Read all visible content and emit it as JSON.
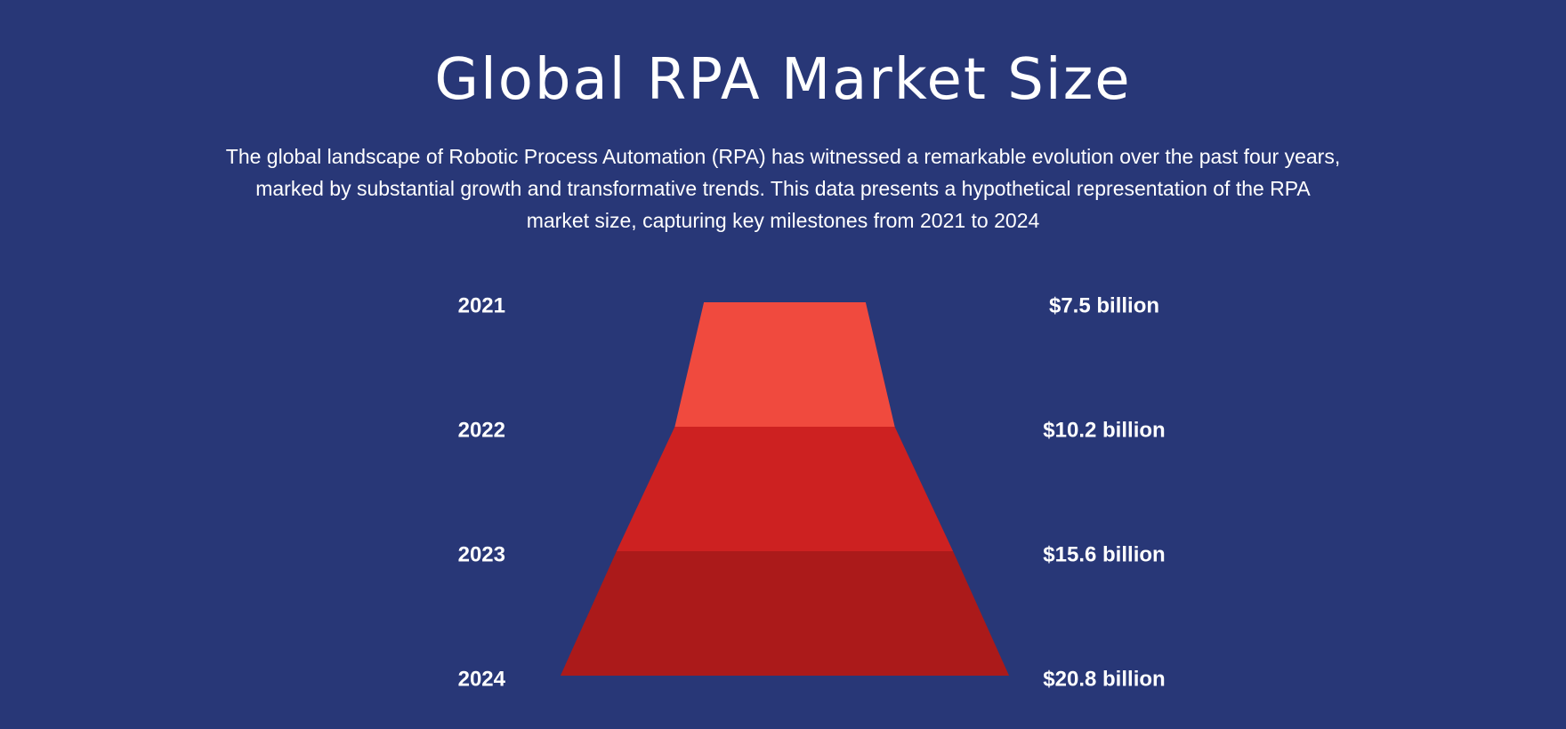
{
  "title": "Global RPA Market Size",
  "description": "The global landscape of Robotic Process Automation (RPA) has witnessed a remarkable evolution over the past four years, marked by substantial growth and transformative trends. This data presents a hypothetical representation of the RPA market size, capturing key milestones from 2021 to 2024",
  "chart_data": {
    "type": "funnel",
    "title": "Global RPA Market Size",
    "unit": "billion USD",
    "categories": [
      "2021",
      "2022",
      "2023",
      "2024"
    ],
    "values": [
      7.5,
      10.2,
      15.6,
      20.8
    ],
    "value_labels": [
      "$7.5 billion",
      "$10.2 billion",
      "$15.6 billion",
      "$20.8 billion"
    ],
    "colors": [
      "#F04A3E",
      "#CD2121",
      "#AB1A1A"
    ],
    "background": "#283777"
  }
}
